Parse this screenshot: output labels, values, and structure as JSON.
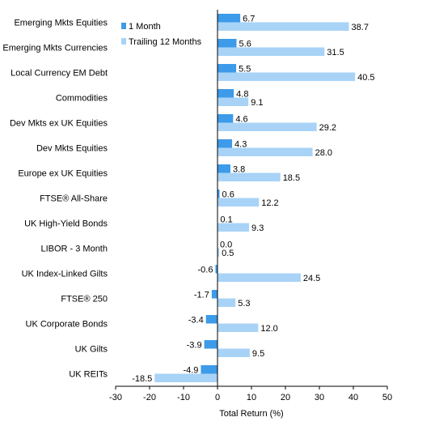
{
  "chart_data": {
    "type": "bar",
    "orientation": "horizontal",
    "categories": [
      "Emerging Mkts Equities",
      "Emerging Mkts Currencies",
      "Local Currency EM Debt",
      "Commodities",
      "Dev Mkts ex UK Equities",
      "Dev Mkts Equities",
      "Europe ex UK Equities",
      "FTSE® All-Share",
      "UK High-Yield Bonds",
      "LIBOR - 3 Month",
      "UK Index-Linked Gilts",
      "FTSE® 250",
      "UK Corporate Bonds",
      "UK Gilts",
      "UK REITs"
    ],
    "series": [
      {
        "name": "1 Month",
        "color": "#3D9BE9",
        "values": [
          6.7,
          5.6,
          5.5,
          4.8,
          4.6,
          4.3,
          3.8,
          0.6,
          0.1,
          0.0,
          -0.6,
          -1.7,
          -3.4,
          -3.9,
          -4.9
        ],
        "labels": [
          "6.7",
          "5.6",
          "5.5",
          "4.8",
          "4.6",
          "4.3",
          "3.8",
          "0.6",
          "0.1",
          "0.0",
          "-0.6",
          "-1.7",
          "-3.4",
          "-3.9",
          "-4.9"
        ]
      },
      {
        "name": "Trailing 12 Months",
        "color": "#A8D3F7",
        "values": [
          38.7,
          31.5,
          40.5,
          9.1,
          29.2,
          28.0,
          18.5,
          12.2,
          9.3,
          0.5,
          24.5,
          5.3,
          12.0,
          9.5,
          -18.5
        ],
        "labels": [
          "38.7",
          "31.5",
          "40.5",
          "9.1",
          "29.2",
          "28.0",
          "18.5",
          "12.2",
          "9.3",
          "0.5",
          "24.5",
          "5.3",
          "12.0",
          "9.5",
          "-18.5"
        ]
      }
    ],
    "xlabel": "Total Return (%)",
    "xlim": [
      -30,
      50
    ],
    "xticks": [
      -30,
      -20,
      -10,
      0,
      10,
      20,
      30,
      40,
      50
    ],
    "xtick_labels": [
      "-30",
      "-20",
      "-10",
      "0",
      "10",
      "20",
      "30",
      "40",
      "50"
    ],
    "grid": false,
    "legend_position": "top-left of plot area"
  }
}
